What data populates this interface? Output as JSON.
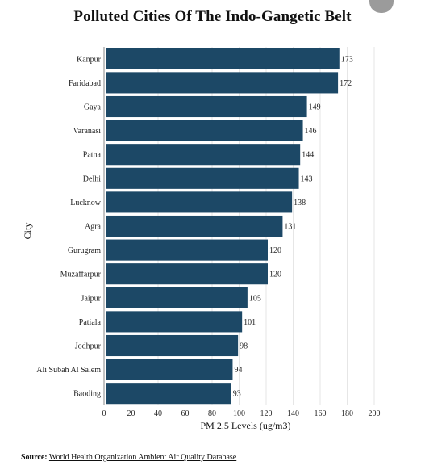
{
  "chart_data": {
    "type": "bar",
    "orientation": "horizontal",
    "title": "Polluted Cities Of The Indo-Gangetic Belt",
    "xlabel": "PM 2.5 Levels (ug/m3)",
    "ylabel": "City",
    "categories": [
      "Kanpur",
      "Faridabad",
      "Gaya",
      "Varanasi",
      "Patna",
      "Delhi",
      "Lucknow",
      "Agra",
      "Gurugram",
      "Muzaffarpur",
      "Jaipur",
      "Patiala",
      "Jodhpur",
      "Ali Subah Al Salem",
      "Baoding"
    ],
    "values": [
      173,
      172,
      149,
      146,
      144,
      143,
      138,
      131,
      120,
      120,
      105,
      101,
      98,
      94,
      93
    ],
    "xlim": [
      0,
      200
    ],
    "xticks": [
      0,
      20,
      40,
      60,
      80,
      100,
      120,
      140,
      160,
      180,
      200
    ],
    "grid": true,
    "bar_color": "#1c4866"
  },
  "source": {
    "label": "Source:",
    "link_text": "World Health Organization Ambient Air Quality Database"
  }
}
